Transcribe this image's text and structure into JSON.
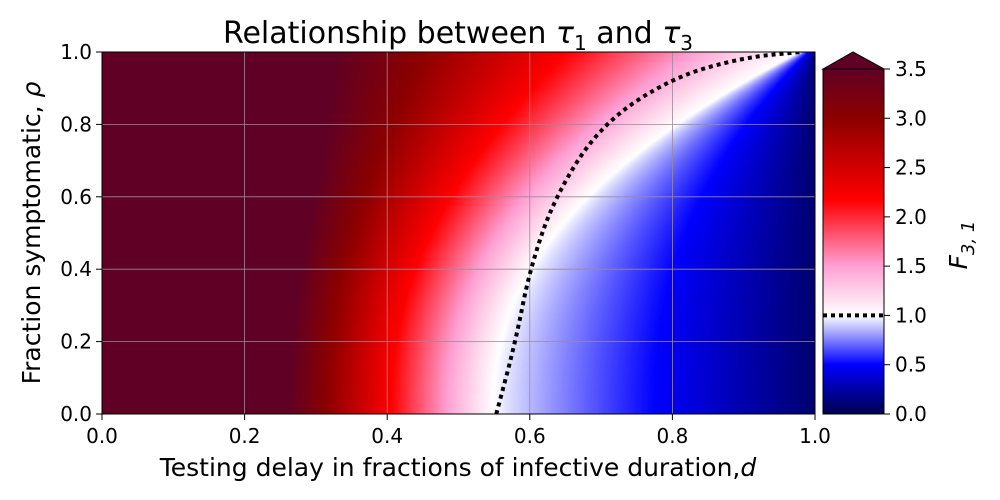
{
  "chart_data": {
    "type": "heatmap",
    "title_text": "Relationship between ",
    "title_sym_a": "τ",
    "title_sub_a": "1",
    "title_mid": " and ",
    "title_sym_b": "τ",
    "title_sub_b": "3",
    "xlabel_text": "Testing delay in fractions of infective duration,",
    "xlabel_var": "d",
    "ylabel_text": "Fraction symptomatic, ",
    "ylabel_var": "ρ",
    "xlim": [
      0.0,
      1.0
    ],
    "ylim": [
      0.0,
      1.0
    ],
    "x_ticks": [
      "0.0",
      "0.2",
      "0.4",
      "0.6",
      "0.8",
      "1.0"
    ],
    "y_ticks": [
      "0.0",
      "0.2",
      "0.4",
      "0.6",
      "0.8",
      "1.0"
    ],
    "grid": true,
    "colorbar": {
      "label_symbol": "F",
      "label_sub": "3, 1",
      "range": [
        0.0,
        3.5
      ],
      "extend": "max",
      "ticks": [
        "0.0",
        "0.5",
        "1.0",
        "1.5",
        "2.0",
        "2.5",
        "3.0",
        "3.5"
      ],
      "marker_value": 1.0,
      "colormap": "seismic"
    },
    "contour": {
      "level": 1.0,
      "style": "dotted",
      "points": [
        {
          "x": 0.553,
          "y": 0.0
        },
        {
          "x": 0.58,
          "y": 0.2
        },
        {
          "x": 0.6,
          "y": 0.4
        },
        {
          "x": 0.635,
          "y": 0.6
        },
        {
          "x": 0.7,
          "y": 0.8
        },
        {
          "x": 0.8,
          "y": 0.93
        },
        {
          "x": 0.9,
          "y": 0.985
        },
        {
          "x": 0.98,
          "y": 1.0
        }
      ]
    }
  }
}
